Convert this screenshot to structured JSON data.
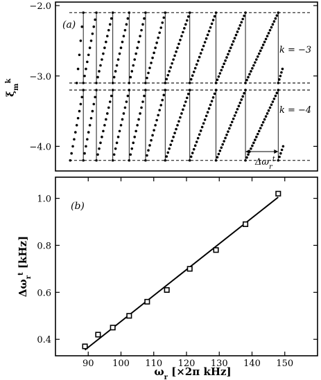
{
  "chart_data": [
    {
      "type": "scatter",
      "panel_label": "(a)",
      "ylabel": "ξ_m^k",
      "yticks": [
        "−2.0",
        "−3.0",
        "−4.0"
      ],
      "ytick_values": [
        -2.0,
        -3.0,
        -4.0
      ],
      "xlim": [
        80,
        160
      ],
      "ylim": [
        -4.35,
        -1.95
      ],
      "dashed_levels": [
        -2.1,
        -3.1,
        -3.2,
        -4.2
      ],
      "series": [
        {
          "name": "k = −3",
          "y_low": -3.1,
          "y_high": -2.1,
          "periods": [
            {
              "start": 86.5,
              "end": 88.5
            },
            {
              "start": 88.5,
              "end": 92.5
            },
            {
              "start": 92.5,
              "end": 97.5
            },
            {
              "start": 97.5,
              "end": 102.5
            },
            {
              "start": 102.5,
              "end": 107.5
            },
            {
              "start": 107.5,
              "end": 113.5
            },
            {
              "start": 113.5,
              "end": 121.0
            },
            {
              "start": 121.0,
              "end": 129.0
            },
            {
              "start": 129.0,
              "end": 138.0
            },
            {
              "start": 138.0,
              "end": 148.0
            },
            {
              "start": 148.0,
              "end": 149.3
            }
          ]
        },
        {
          "name": "k = −4",
          "y_low": -4.2,
          "y_high": -3.2,
          "periods": [
            {
              "start": 84.5,
              "end": 88.5
            },
            {
              "start": 88.5,
              "end": 92.5
            },
            {
              "start": 92.5,
              "end": 97.5
            },
            {
              "start": 97.5,
              "end": 102.5
            },
            {
              "start": 102.5,
              "end": 107.5
            },
            {
              "start": 107.5,
              "end": 113.5
            },
            {
              "start": 113.5,
              "end": 121.0
            },
            {
              "start": 121.0,
              "end": 129.0
            },
            {
              "start": 129.0,
              "end": 138.0
            },
            {
              "start": 138.0,
              "end": 148.0
            },
            {
              "start": 148.0,
              "end": 149.5
            }
          ]
        }
      ],
      "annotations": {
        "k_upper": "k = −3",
        "k_lower": "k = −4",
        "delta": "Δω_r^t"
      },
      "delta_arrow_x": [
        138.0,
        148.0
      ]
    },
    {
      "type": "scatter",
      "panel_label": "(b)",
      "xlabel": "ω_r [×2π kHz]",
      "ylabel": "Δω_r^t [kHz]",
      "xlim": [
        80,
        160
      ],
      "ylim": [
        0.33,
        1.09
      ],
      "xticks": [
        "90",
        "100",
        "110",
        "120",
        "130",
        "140",
        "150"
      ],
      "xtick_values": [
        90,
        100,
        110,
        120,
        130,
        140,
        150
      ],
      "yticks": [
        "0.4",
        "0.6",
        "0.8",
        "1.0"
      ],
      "ytick_values": [
        0.4,
        0.6,
        0.8,
        1.0
      ],
      "points": [
        {
          "x": 89.0,
          "y": 0.37
        },
        {
          "x": 93.0,
          "y": 0.42
        },
        {
          "x": 97.5,
          "y": 0.45
        },
        {
          "x": 102.5,
          "y": 0.5
        },
        {
          "x": 108.0,
          "y": 0.56
        },
        {
          "x": 114.0,
          "y": 0.61
        },
        {
          "x": 121.0,
          "y": 0.7
        },
        {
          "x": 129.0,
          "y": 0.78
        },
        {
          "x": 138.0,
          "y": 0.89
        },
        {
          "x": 148.0,
          "y": 1.02
        }
      ],
      "fit_line": [
        {
          "x": 89.0,
          "y": 0.355
        },
        {
          "x": 148.0,
          "y": 1.005
        }
      ]
    }
  ]
}
